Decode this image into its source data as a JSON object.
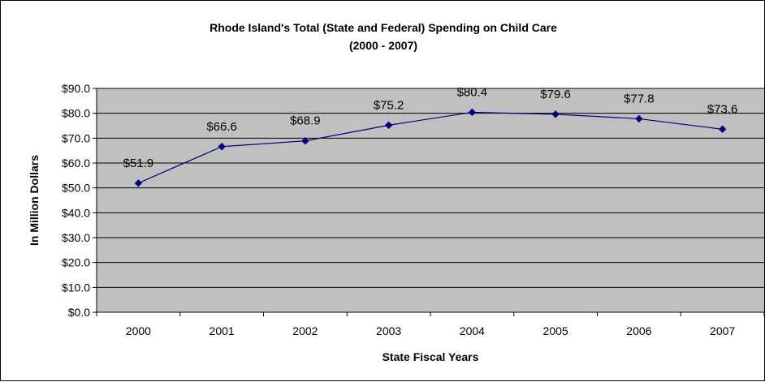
{
  "chart_data": {
    "type": "line",
    "title": "Rhode Island's Total (State and Federal) Spending on Child Care",
    "subtitle": "(2000 - 2007)",
    "xlabel": "State Fiscal Years",
    "ylabel": "In Million Dollars",
    "categories": [
      "2000",
      "2001",
      "2002",
      "2003",
      "2004",
      "2005",
      "2006",
      "2007"
    ],
    "series": [
      {
        "values": [
          51.9,
          66.6,
          68.9,
          75.2,
          80.4,
          79.6,
          77.8,
          73.6
        ],
        "data_labels": [
          "$51.9",
          "$66.6",
          "$68.9",
          "$75.2",
          "$80.4",
          "$79.6",
          "$77.8",
          "$73.6"
        ]
      }
    ],
    "ylim": [
      0,
      90
    ],
    "yticks": [
      0,
      10,
      20,
      30,
      40,
      50,
      60,
      70,
      80,
      90
    ],
    "ytick_labels": [
      "$0.0",
      "$10.0",
      "$20.0",
      "$30.0",
      "$40.0",
      "$50.0",
      "$60.0",
      "$70.0",
      "$80.0",
      "$90.0"
    ],
    "grid": true,
    "legend": "none",
    "colors": {
      "plot_background": "#c0c0c0",
      "series": "#000080",
      "gridlines": "#000000"
    }
  }
}
